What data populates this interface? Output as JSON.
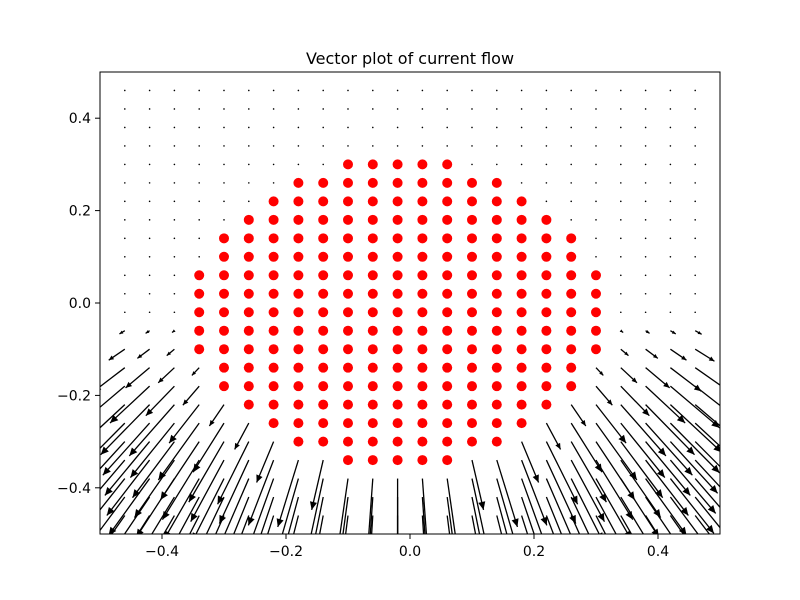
{
  "chart_data": {
    "type": "quiver",
    "title": "Vector plot of current flow",
    "xlabel": "",
    "ylabel": "",
    "xlim": [
      -0.5,
      0.5
    ],
    "ylim": [
      -0.5,
      0.5
    ],
    "xticks": [
      -0.4,
      -0.2,
      0.0,
      0.2,
      0.4
    ],
    "yticks": [
      -0.4,
      -0.2,
      0.0,
      0.2,
      0.4
    ],
    "xtick_labels": [
      "−0.4",
      "−0.2",
      "0.0",
      "0.2",
      "0.4"
    ],
    "ytick_labels": [
      "−0.4",
      "−0.2",
      "0.0",
      "0.2",
      "0.4"
    ],
    "grid": false,
    "arrow_color": "#000000",
    "marker_color": "#ff0000",
    "grid_points": {
      "x_start": -0.46,
      "x_step": 0.04,
      "x_count": 24,
      "y_start": -0.5,
      "y_step": 0.04,
      "y_count": 25
    },
    "marker_rows": [
      {
        "y": 0.3,
        "x": [
          -0.1,
          -0.06,
          -0.02,
          0.02,
          0.06
        ]
      },
      {
        "y": 0.26,
        "x": [
          -0.18,
          -0.14,
          -0.1,
          -0.06,
          -0.02,
          0.02,
          0.06,
          0.1,
          0.14
        ]
      },
      {
        "y": 0.22,
        "x": [
          -0.22,
          -0.18,
          -0.14,
          -0.1,
          -0.06,
          -0.02,
          0.02,
          0.06,
          0.1,
          0.14,
          0.18
        ]
      },
      {
        "y": 0.18,
        "x": [
          -0.26,
          -0.22,
          -0.18,
          -0.14,
          -0.1,
          -0.06,
          -0.02,
          0.02,
          0.06,
          0.1,
          0.14,
          0.18,
          0.22
        ]
      },
      {
        "y": 0.14,
        "x": [
          -0.3,
          -0.26,
          -0.22,
          -0.18,
          -0.14,
          -0.1,
          -0.06,
          -0.02,
          0.02,
          0.06,
          0.1,
          0.14,
          0.18,
          0.22,
          0.26
        ]
      },
      {
        "y": 0.1,
        "x": [
          -0.3,
          -0.26,
          -0.22,
          -0.18,
          -0.14,
          -0.1,
          -0.06,
          -0.02,
          0.02,
          0.06,
          0.1,
          0.14,
          0.18,
          0.22,
          0.26
        ]
      },
      {
        "y": 0.06,
        "x": [
          -0.34,
          -0.3,
          -0.26,
          -0.22,
          -0.18,
          -0.14,
          -0.1,
          -0.06,
          -0.02,
          0.02,
          0.06,
          0.1,
          0.14,
          0.18,
          0.22,
          0.26,
          0.3
        ]
      },
      {
        "y": 0.02,
        "x": [
          -0.34,
          -0.3,
          -0.26,
          -0.22,
          -0.18,
          -0.14,
          -0.1,
          -0.06,
          -0.02,
          0.02,
          0.06,
          0.1,
          0.14,
          0.18,
          0.22,
          0.26,
          0.3
        ]
      },
      {
        "y": -0.02,
        "x": [
          -0.34,
          -0.3,
          -0.26,
          -0.22,
          -0.18,
          -0.14,
          -0.1,
          -0.06,
          -0.02,
          0.02,
          0.06,
          0.1,
          0.14,
          0.18,
          0.22,
          0.26,
          0.3
        ]
      },
      {
        "y": -0.06,
        "x": [
          -0.34,
          -0.3,
          -0.26,
          -0.22,
          -0.18,
          -0.14,
          -0.1,
          -0.06,
          -0.02,
          0.02,
          0.06,
          0.1,
          0.14,
          0.18,
          0.22,
          0.26,
          0.3
        ]
      },
      {
        "y": -0.1,
        "x": [
          -0.34,
          -0.3,
          -0.26,
          -0.22,
          -0.18,
          -0.14,
          -0.1,
          -0.06,
          -0.02,
          0.02,
          0.06,
          0.1,
          0.14,
          0.18,
          0.22,
          0.26,
          0.3
        ]
      },
      {
        "y": -0.14,
        "x": [
          -0.3,
          -0.26,
          -0.22,
          -0.18,
          -0.14,
          -0.1,
          -0.06,
          -0.02,
          0.02,
          0.06,
          0.1,
          0.14,
          0.18,
          0.22,
          0.26
        ]
      },
      {
        "y": -0.18,
        "x": [
          -0.3,
          -0.26,
          -0.22,
          -0.18,
          -0.14,
          -0.1,
          -0.06,
          -0.02,
          0.02,
          0.06,
          0.1,
          0.14,
          0.18,
          0.22,
          0.26
        ]
      },
      {
        "y": -0.22,
        "x": [
          -0.26,
          -0.22,
          -0.18,
          -0.14,
          -0.1,
          -0.06,
          -0.02,
          0.02,
          0.06,
          0.1,
          0.14,
          0.18,
          0.22
        ]
      },
      {
        "y": -0.26,
        "x": [
          -0.22,
          -0.18,
          -0.14,
          -0.1,
          -0.06,
          -0.02,
          0.02,
          0.06,
          0.1,
          0.14,
          0.18
        ]
      },
      {
        "y": -0.3,
        "x": [
          -0.18,
          -0.14,
          -0.1,
          -0.06,
          -0.02,
          0.02,
          0.06,
          0.1,
          0.14
        ]
      },
      {
        "y": -0.34,
        "x": [
          -0.1,
          -0.06,
          -0.02,
          0.02,
          0.06
        ]
      }
    ]
  }
}
